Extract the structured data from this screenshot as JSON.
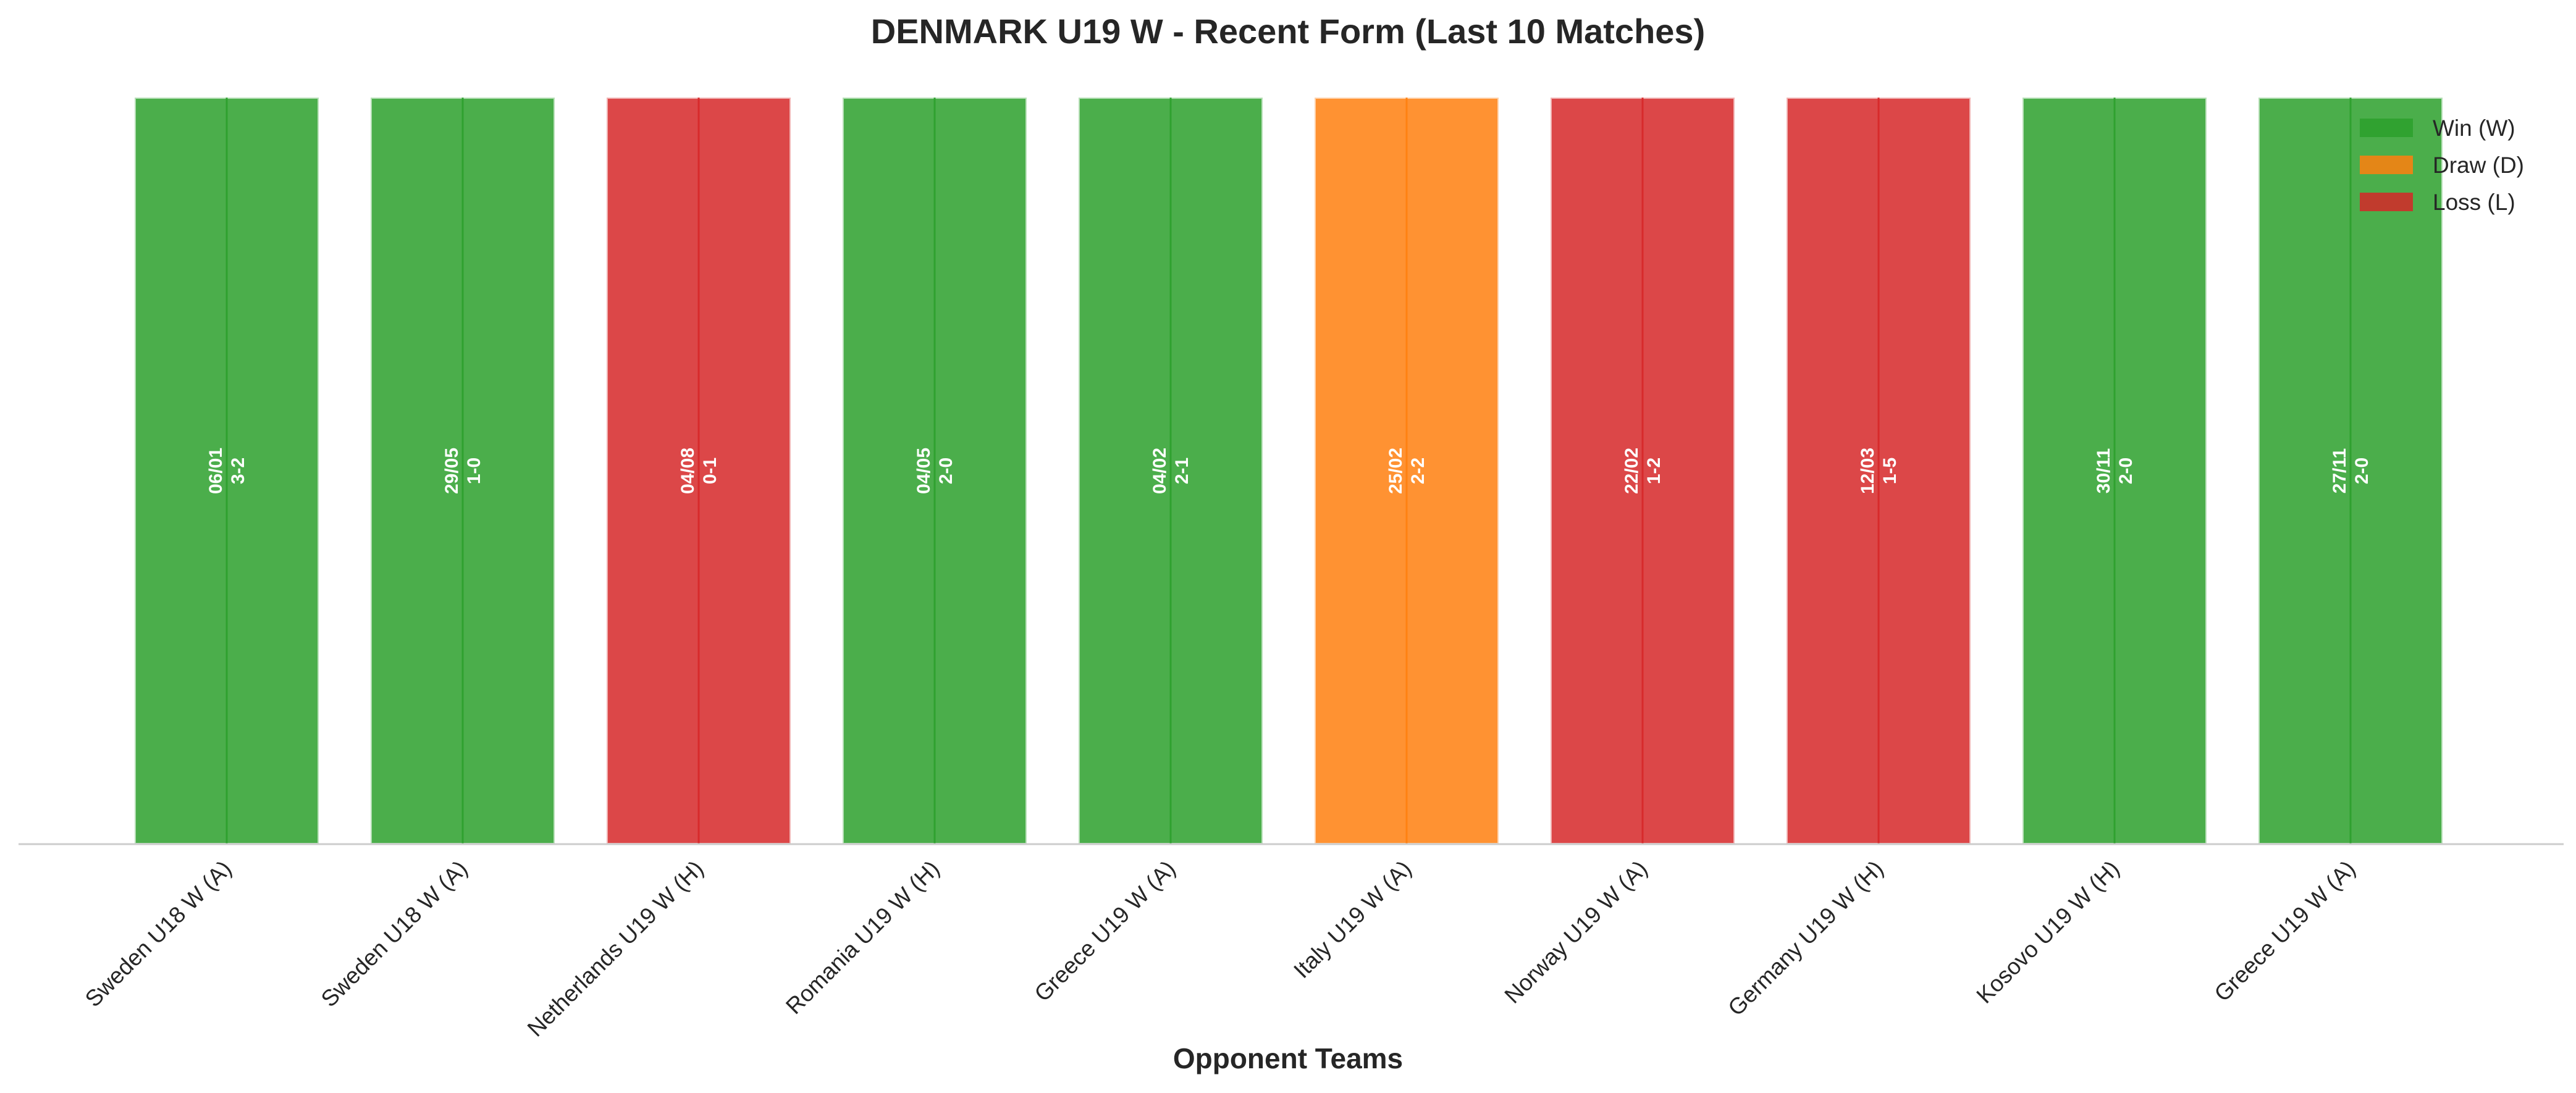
{
  "chart_data": {
    "type": "bar",
    "title": "DENMARK U19 W - Recent Form (Last 10 Matches)",
    "xlabel": "Opponent Teams",
    "ylabel": "",
    "ylim": [
      0,
      1
    ],
    "grid": false,
    "legend_position": "top-right",
    "categories": [
      "Sweden U18 W (A)",
      "Sweden U18 W (A)",
      "Netherlands U19 W (H)",
      "Romania U19 W (H)",
      "Greece U19 W (A)",
      "Italy U19 W (A)",
      "Norway U19 W (A)",
      "Germany U19 W (H)",
      "Kosovo U19 W (H)",
      "Greece U19 W (A)"
    ],
    "values": [
      1,
      1,
      1,
      1,
      1,
      1,
      1,
      1,
      1,
      1
    ],
    "results": [
      "W",
      "W",
      "L",
      "W",
      "W",
      "D",
      "L",
      "L",
      "W",
      "W"
    ],
    "dates": [
      "06/01",
      "29/05",
      "04/08",
      "04/05",
      "04/02",
      "25/02",
      "22/02",
      "12/03",
      "30/11",
      "27/11"
    ],
    "scores": [
      "3-2",
      "1-0",
      "0-1",
      "2-0",
      "2-1",
      "2-2",
      "1-2",
      "1-5",
      "2-0",
      "2-0"
    ],
    "legend": [
      {
        "key": "W",
        "label": "Win (W)",
        "color": "#2ca02c"
      },
      {
        "key": "D",
        "label": "Draw (D)",
        "color": "#ff7f0e"
      },
      {
        "key": "L",
        "label": "Loss (L)",
        "color": "#d62728"
      }
    ]
  }
}
